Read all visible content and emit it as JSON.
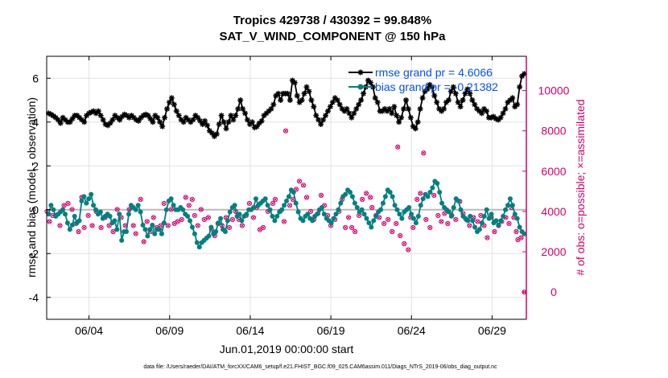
{
  "chart_data": {
    "type": "line",
    "title": [
      "Tropics 429738 / 430392 = 99.848%",
      "SAT_V_WIND_COMPONENT @ 150 hPa"
    ],
    "xlabel": "Jun.01,2019 00:00:00 start",
    "ylabel_left": "rmse and bias (model - observation)",
    "ylabel_right": "# of obs: o=possible; ×=assimilated",
    "footer": "data file: /Users/raeder/DAI/ATM_forcXX/CAM6_setup/f.e21.FHIST_BGC.f09_025.CAM6assim.011/Diags_NTrS_2019-06/obs_diag_output.nc",
    "x_ticks": [
      {
        "label": "06/04",
        "value": 4
      },
      {
        "label": "06/09",
        "value": 9
      },
      {
        "label": "06/14",
        "value": 14
      },
      {
        "label": "06/19",
        "value": 19
      },
      {
        "label": "06/24",
        "value": 24
      },
      {
        "label": "06/29",
        "value": 29
      }
    ],
    "x_range": [
      1.375,
      31.125
    ],
    "ylim_left": [
      -5,
      7
    ],
    "y_ticks_left": [
      "6",
      "4",
      "2",
      "0",
      "-2",
      "-4"
    ],
    "ylim_right": [
      -1350,
      11700
    ],
    "y_ticks_right": [
      "10000",
      "8000",
      "6000",
      "4000",
      "2000",
      "0"
    ],
    "zero_line": 0,
    "colors": {
      "rmse": "#000000",
      "bias": "#008080",
      "obs": "#d6006b",
      "legend_text": "#0050ff",
      "zero": "#bbbbbb",
      "grid": "#e2e2e2"
    },
    "series": [
      {
        "name": "rmse",
        "legend": "rmse grand pr = 4.6066",
        "values": [
          4.4,
          4.35,
          4.28,
          4.2,
          4.1,
          3.95,
          4.2,
          4.1,
          4.0,
          4.0,
          4.15,
          4.3,
          4.3,
          4.2,
          4.1,
          4.0,
          4.3,
          4.4,
          4.45,
          4.5,
          4.4,
          4.5,
          4.3,
          4.1,
          3.9,
          3.85,
          3.95,
          4.1,
          4.3,
          4.2,
          4.1,
          4.25,
          4.35,
          4.3,
          4.2,
          4.3,
          4.2,
          4.1,
          4.05,
          4.2,
          4.3,
          4.35,
          4.3,
          4.15,
          4.0,
          4.3,
          4.2,
          4.0,
          3.8,
          4.2,
          4.6,
          4.9,
          5.1,
          4.8,
          4.5,
          4.3,
          4.1,
          4.0,
          4.2,
          4.1,
          4.0,
          4.1,
          4.3,
          4.2,
          4.05,
          3.9,
          4.05,
          3.85,
          3.6,
          3.5,
          3.35,
          3.45,
          3.9,
          4.3,
          4.0,
          3.7,
          4.0,
          4.3,
          4.1,
          4.3,
          4.6,
          5.0,
          4.6,
          4.4,
          4.1,
          3.9,
          4.0,
          3.75,
          3.8,
          3.95,
          4.05,
          4.3,
          4.4,
          4.5,
          4.6,
          4.8,
          5.2,
          5.3,
          5.0,
          5.3,
          5.3,
          5.3,
          5.0,
          5.9,
          5.8,
          5.2,
          4.9,
          5.0,
          5.3,
          5.6,
          5.4,
          5.0,
          4.7,
          4.3,
          4.1,
          3.9,
          4.1,
          4.3,
          4.5,
          4.7,
          4.9,
          5.1,
          5.0,
          4.8,
          4.6,
          4.5,
          4.6,
          4.4,
          4.2,
          4.4,
          4.6,
          4.8,
          5.0,
          5.3,
          5.6,
          5.9,
          5.8,
          5.6,
          5.1,
          4.9,
          4.5,
          4.5,
          4.6,
          4.5,
          4.6,
          4.4,
          4.7,
          4.3,
          4.0,
          4.2,
          4.6,
          5.0,
          4.6,
          4.2,
          3.8,
          3.7,
          4.0,
          4.6,
          5.1,
          5.4,
          5.5,
          5.7,
          5.6,
          5.2,
          4.9,
          4.6,
          4.5,
          4.6,
          4.9,
          5.0,
          5.4,
          5.6,
          5.3,
          4.9,
          4.7,
          5.0,
          5.3,
          5.5,
          5.3,
          5.0,
          4.8,
          4.6,
          4.5,
          4.4,
          4.6,
          4.5,
          4.2,
          4.2,
          4.25,
          4.15,
          4.1,
          4.2,
          4.4,
          4.6,
          4.9,
          5.0,
          5.1,
          4.7,
          4.8,
          5.6,
          6.1,
          6.2
        ]
      },
      {
        "name": "bias",
        "legend": "bias grand pr = -0.21382",
        "values": [
          -0.2,
          0.2,
          0.0,
          -0.3,
          -0.2,
          -0.1,
          0.0,
          -0.2,
          -0.6,
          -0.9,
          -0.7,
          -0.3,
          -0.6,
          -0.5,
          0.4,
          0.6,
          0.3,
          0.5,
          0.7,
          0.2,
          0.0,
          -0.2,
          -0.1,
          -0.4,
          -0.3,
          -0.2,
          -0.3,
          -0.6,
          -0.5,
          -0.9,
          -0.2,
          -1.4,
          -1.0,
          -1.0,
          -0.2,
          0.2,
          0.1,
          0.0,
          0.2,
          -0.1,
          -0.7,
          -0.9,
          -1.2,
          -0.9,
          -0.7,
          -1.1,
          -0.9,
          -0.9,
          -1.1,
          -0.6,
          0.0,
          0.4,
          0.5,
          0.2,
          0.0,
          0.0,
          0.1,
          0.0,
          -0.2,
          -0.3,
          -0.5,
          -0.8,
          -1.1,
          -1.5,
          -1.7,
          -1.5,
          -1.4,
          -1.3,
          -1.2,
          -0.8,
          -1.1,
          -1.0,
          -0.6,
          -0.4,
          -0.9,
          -1.0,
          -0.5,
          -0.1,
          0.1,
          0.2,
          -0.3,
          -0.2,
          -0.5,
          -0.3,
          -0.2,
          0.0,
          0.0,
          0.1,
          0.5,
          0.2,
          0.3,
          0.4,
          0.5,
          0.2,
          0.0,
          -0.3,
          -0.5,
          -0.3,
          -0.1,
          0.0,
          0.2,
          0.4,
          0.6,
          0.9,
          0.8,
          0.3,
          -0.1,
          -0.4,
          -0.5,
          -0.3,
          -0.2,
          -0.4,
          -0.5,
          -0.3,
          -0.2,
          0.0,
          0.1,
          -0.2,
          -0.4,
          -0.5,
          -0.6,
          -0.4,
          -0.2,
          0.0,
          0.3,
          0.6,
          0.7,
          0.9,
          0.8,
          0.6,
          0.3,
          0.1,
          -0.1,
          0.0,
          -0.2,
          -0.4,
          -0.6,
          -0.8,
          -0.5,
          -0.3,
          -0.1,
          0.0,
          0.3,
          0.6,
          0.9,
          0.8,
          0.6,
          0.2,
          0.0,
          -0.2,
          -0.4,
          -0.1,
          0.0,
          0.1,
          -0.2,
          -0.4,
          -0.6,
          -0.3,
          0.2,
          0.5,
          0.7,
          0.6,
          0.8,
          1.0,
          1.3,
          1.2,
          0.8,
          0.3,
          0.1,
          0.0,
          -0.1,
          -0.3,
          0.1,
          0.5,
          0.4,
          0.0,
          -0.3,
          -0.4,
          -0.5,
          -0.3,
          -0.5,
          -0.8,
          -1.0,
          -0.9,
          -0.6,
          -0.3,
          0.0,
          -0.4,
          -0.2,
          -0.6,
          -0.5,
          -0.7,
          -0.5,
          -0.3,
          0.0,
          0.2,
          0.5,
          0.2,
          -0.2,
          -0.4,
          -0.8,
          -1.0,
          -1.1
        ]
      }
    ],
    "obs_points": [
      [
        1.4,
        4000
      ],
      [
        1.55,
        3500
      ],
      [
        1.75,
        3800
      ],
      [
        1.95,
        3800
      ],
      [
        2.2,
        3300
      ],
      [
        2.45,
        4300
      ],
      [
        2.7,
        4400
      ],
      [
        2.95,
        4100
      ],
      [
        3.2,
        3400
      ],
      [
        3.35,
        3000
      ],
      [
        3.55,
        4700
      ],
      [
        3.7,
        3200
      ],
      [
        3.95,
        3800
      ],
      [
        4.2,
        3300
      ],
      [
        4.45,
        4000
      ],
      [
        4.75,
        3200
      ],
      [
        5.0,
        3700
      ],
      [
        5.25,
        3300
      ],
      [
        5.5,
        3000
      ],
      [
        5.75,
        4100
      ],
      [
        6.0,
        3700
      ],
      [
        6.25,
        3300
      ],
      [
        6.5,
        4100
      ],
      [
        6.75,
        3300
      ],
      [
        6.9,
        2900
      ],
      [
        7.2,
        4600
      ],
      [
        7.4,
        2500
      ],
      [
        7.6,
        3500
      ],
      [
        7.8,
        3000
      ],
      [
        8.0,
        3700
      ],
      [
        8.2,
        3200
      ],
      [
        8.45,
        3300
      ],
      [
        8.65,
        4400
      ],
      [
        8.9,
        3300
      ],
      [
        9.1,
        4100
      ],
      [
        9.3,
        3400
      ],
      [
        9.5,
        3500
      ],
      [
        9.75,
        3600
      ],
      [
        10.0,
        4700
      ],
      [
        10.2,
        4300
      ],
      [
        10.4,
        4600
      ],
      [
        10.55,
        3800
      ],
      [
        10.75,
        3300
      ],
      [
        10.95,
        4100
      ],
      [
        11.15,
        3600
      ],
      [
        11.4,
        3700
      ],
      [
        11.6,
        3100
      ],
      [
        11.8,
        2800
      ],
      [
        12.0,
        3400
      ],
      [
        12.25,
        3300
      ],
      [
        12.5,
        3700
      ],
      [
        12.7,
        3200
      ],
      [
        12.9,
        3600
      ],
      [
        13.1,
        4000
      ],
      [
        13.3,
        3600
      ],
      [
        13.5,
        3300
      ],
      [
        13.75,
        3800
      ],
      [
        13.95,
        4400
      ],
      [
        14.2,
        3700
      ],
      [
        14.4,
        4200
      ],
      [
        14.6,
        3100
      ],
      [
        14.8,
        3200
      ],
      [
        15.1,
        4000
      ],
      [
        15.4,
        4400
      ],
      [
        15.55,
        4600
      ],
      [
        15.85,
        4000
      ],
      [
        16.1,
        3500
      ],
      [
        16.2,
        8000
      ],
      [
        16.45,
        4300
      ],
      [
        16.65,
        4600
      ],
      [
        16.85,
        5100
      ],
      [
        17.05,
        5500
      ],
      [
        17.3,
        5300
      ],
      [
        17.5,
        4700
      ],
      [
        17.75,
        4000
      ],
      [
        17.95,
        3600
      ],
      [
        18.2,
        3900
      ],
      [
        18.4,
        4800
      ],
      [
        18.6,
        4300
      ],
      [
        18.8,
        3800
      ],
      [
        19.0,
        3300
      ],
      [
        19.25,
        3600
      ],
      [
        19.5,
        4000
      ],
      [
        19.7,
        4600
      ],
      [
        19.9,
        3200
      ],
      [
        20.1,
        3700
      ],
      [
        20.3,
        3200
      ],
      [
        20.5,
        3000
      ],
      [
        20.75,
        3800
      ],
      [
        20.95,
        4600
      ],
      [
        21.2,
        4900
      ],
      [
        21.45,
        4700
      ],
      [
        21.55,
        4200
      ],
      [
        21.8,
        3800
      ],
      [
        22.0,
        3700
      ],
      [
        22.3,
        3400
      ],
      [
        22.55,
        3600
      ],
      [
        22.8,
        3000
      ],
      [
        23.05,
        3400
      ],
      [
        23.15,
        7200
      ],
      [
        23.3,
        2800
      ],
      [
        23.55,
        2400
      ],
      [
        23.8,
        2100
      ],
      [
        23.95,
        3700
      ],
      [
        24.1,
        3200
      ],
      [
        24.35,
        4600
      ],
      [
        24.55,
        4900
      ],
      [
        24.75,
        6900
      ],
      [
        24.9,
        3600
      ],
      [
        25.15,
        3200
      ],
      [
        25.4,
        4800
      ],
      [
        25.65,
        3800
      ],
      [
        25.85,
        3500
      ],
      [
        26.05,
        3900
      ],
      [
        26.25,
        3400
      ],
      [
        26.5,
        3800
      ],
      [
        26.75,
        3600
      ],
      [
        27.0,
        4500
      ],
      [
        27.2,
        3900
      ],
      [
        27.4,
        3600
      ],
      [
        27.6,
        3300
      ],
      [
        27.85,
        3700
      ],
      [
        28.1,
        3500
      ],
      [
        28.3,
        3800
      ],
      [
        28.5,
        3300
      ],
      [
        28.7,
        2700
      ],
      [
        28.95,
        3700
      ],
      [
        29.15,
        3000
      ],
      [
        29.4,
        3300
      ],
      [
        29.6,
        3500
      ],
      [
        29.85,
        3700
      ],
      [
        30.05,
        3400
      ],
      [
        30.2,
        4200
      ],
      [
        30.35,
        3700
      ],
      [
        30.5,
        3000
      ],
      [
        30.6,
        2600
      ],
      [
        30.8,
        2700
      ],
      [
        31.0,
        0
      ]
    ]
  }
}
